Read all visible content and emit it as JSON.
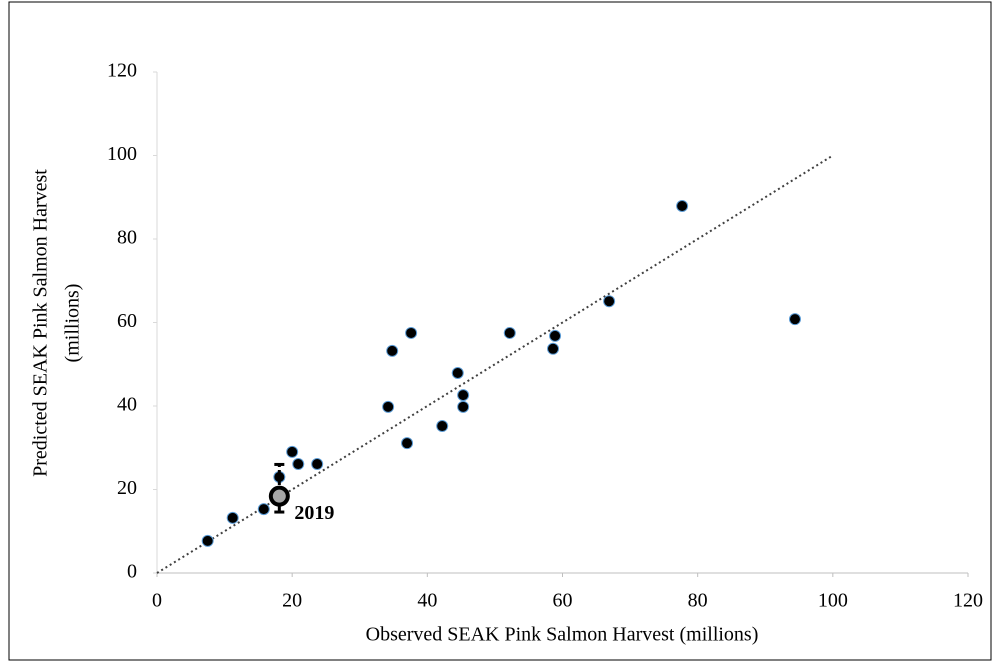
{
  "chart_data": {
    "type": "scatter",
    "x_label": "Observed SEAK Pink Salmon Harvest (millions)",
    "y_label": [
      "Predicted SEAK Pink Salmon Harvest",
      "(millions)"
    ],
    "xlim": [
      0,
      120
    ],
    "ylim": [
      0,
      120
    ],
    "xticks": [
      0,
      20,
      40,
      60,
      80,
      100,
      120
    ],
    "yticks": [
      0,
      20,
      40,
      60,
      80,
      100,
      120
    ],
    "grid": false,
    "series": [
      {
        "color": "#000000",
        "edge_color": "#5b9bd5",
        "x": [
          7.5,
          11.2,
          15.8,
          18.1,
          20.0,
          20.9,
          23.7,
          34.2,
          34.8,
          37.0,
          37.6,
          42.2,
          44.5,
          45.3,
          45.3,
          52.2,
          58.6,
          58.9,
          66.9,
          77.7,
          94.4
        ],
        "values": [
          7.7,
          13.2,
          15.3,
          23.0,
          29.0,
          26.1,
          26.1,
          39.8,
          53.2,
          31.1,
          57.5,
          35.2,
          47.9,
          42.6,
          39.8,
          57.5,
          53.7,
          56.8,
          65.1,
          87.9,
          60.8
        ]
      }
    ],
    "forecast": {
      "label": "2019",
      "x": 18.1,
      "value": 18.4,
      "error_low": 14.6,
      "error_high": 26.0,
      "color": "#a6a6a6"
    },
    "reference_line": {
      "x": [
        0,
        100
      ],
      "values": [
        0,
        100
      ],
      "color": "#404040"
    }
  }
}
